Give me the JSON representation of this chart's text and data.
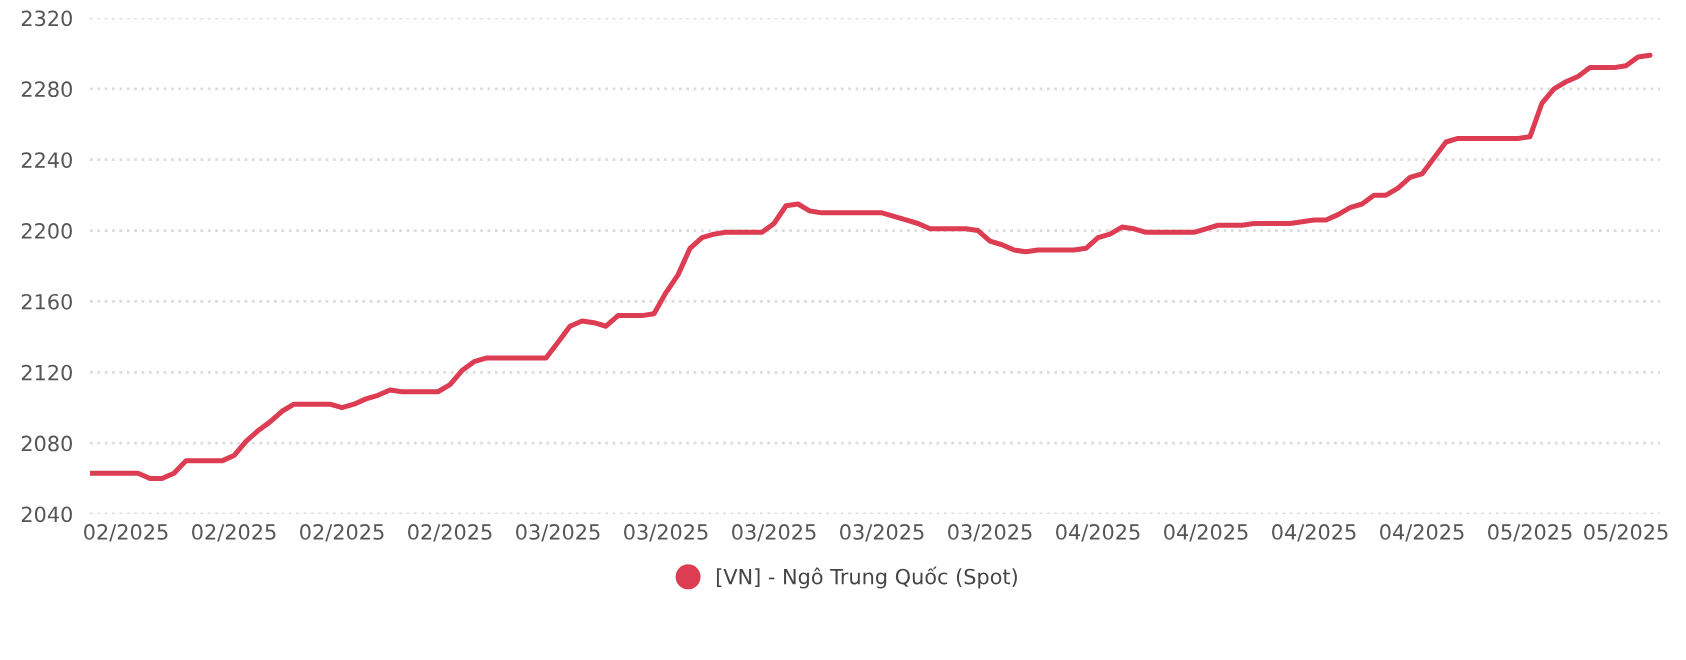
{
  "chart_data": {
    "type": "line",
    "categories": [
      null,
      null,
      null,
      "02/2025",
      null,
      null,
      null,
      null,
      null,
      null,
      null,
      null,
      "02/2025",
      null,
      null,
      null,
      null,
      null,
      null,
      null,
      null,
      "02/2025",
      null,
      null,
      null,
      null,
      null,
      null,
      null,
      null,
      "02/2025",
      null,
      null,
      null,
      null,
      null,
      null,
      null,
      null,
      "03/2025",
      null,
      null,
      null,
      null,
      null,
      null,
      null,
      null,
      "03/2025",
      null,
      null,
      null,
      null,
      null,
      null,
      null,
      null,
      "03/2025",
      null,
      null,
      null,
      null,
      null,
      null,
      null,
      null,
      "03/2025",
      null,
      null,
      null,
      null,
      null,
      null,
      null,
      null,
      "03/2025",
      null,
      null,
      null,
      null,
      null,
      null,
      null,
      null,
      "04/2025",
      null,
      null,
      null,
      null,
      null,
      null,
      null,
      null,
      "04/2025",
      null,
      null,
      null,
      null,
      null,
      null,
      null,
      null,
      "04/2025",
      null,
      null,
      null,
      null,
      null,
      null,
      null,
      null,
      "04/2025",
      null,
      null,
      null,
      null,
      null,
      null,
      null,
      null,
      "05/2025",
      null,
      null,
      null,
      null,
      null,
      null,
      null,
      "05/2025",
      null,
      null
    ],
    "series": [
      {
        "name": "[VN] - Ngô Trung Quốc (Spot)",
        "color": "#dc3d52",
        "values": [
          2063,
          2063,
          2063,
          2063,
          2063,
          2060,
          2060,
          2063,
          2070,
          2070,
          2070,
          2070,
          2073,
          2081,
          2087,
          2092,
          2098,
          2102,
          2102,
          2102,
          2102,
          2100,
          2102,
          2105,
          2107,
          2110,
          2109,
          2109,
          2109,
          2109,
          2113,
          2121,
          2126,
          2128,
          2128,
          2128,
          2128,
          2128,
          2128,
          2137,
          2146,
          2149,
          2148,
          2146,
          2152,
          2152,
          2152,
          2153,
          2165,
          2175,
          2190,
          2196,
          2198,
          2199,
          2199,
          2199,
          2199,
          2204,
          2214,
          2215,
          2211,
          2210,
          2210,
          2210,
          2210,
          2210,
          2210,
          2208,
          2206,
          2204,
          2201,
          2201,
          2201,
          2201,
          2200,
          2194,
          2192,
          2189,
          2188,
          2189,
          2189,
          2189,
          2189,
          2190,
          2196,
          2198,
          2202,
          2201,
          2199,
          2199,
          2199,
          2199,
          2199,
          2201,
          2203,
          2203,
          2203,
          2204,
          2204,
          2204,
          2204,
          2205,
          2206,
          2206,
          2209,
          2213,
          2215,
          2220,
          2220,
          2224,
          2230,
          2232,
          2241,
          2250,
          2252,
          2252,
          2252,
          2252,
          2252,
          2252,
          2253,
          2272,
          2280,
          2284,
          2287,
          2292,
          2292,
          2292,
          2293,
          2298,
          2299
        ]
      }
    ],
    "ylim": [
      2040,
      2320
    ],
    "yticks": [
      2040,
      2080,
      2120,
      2160,
      2200,
      2240,
      2280,
      2320
    ],
    "grid": "y",
    "legend": "bottom",
    "line_style": "solid",
    "marker": "none"
  }
}
